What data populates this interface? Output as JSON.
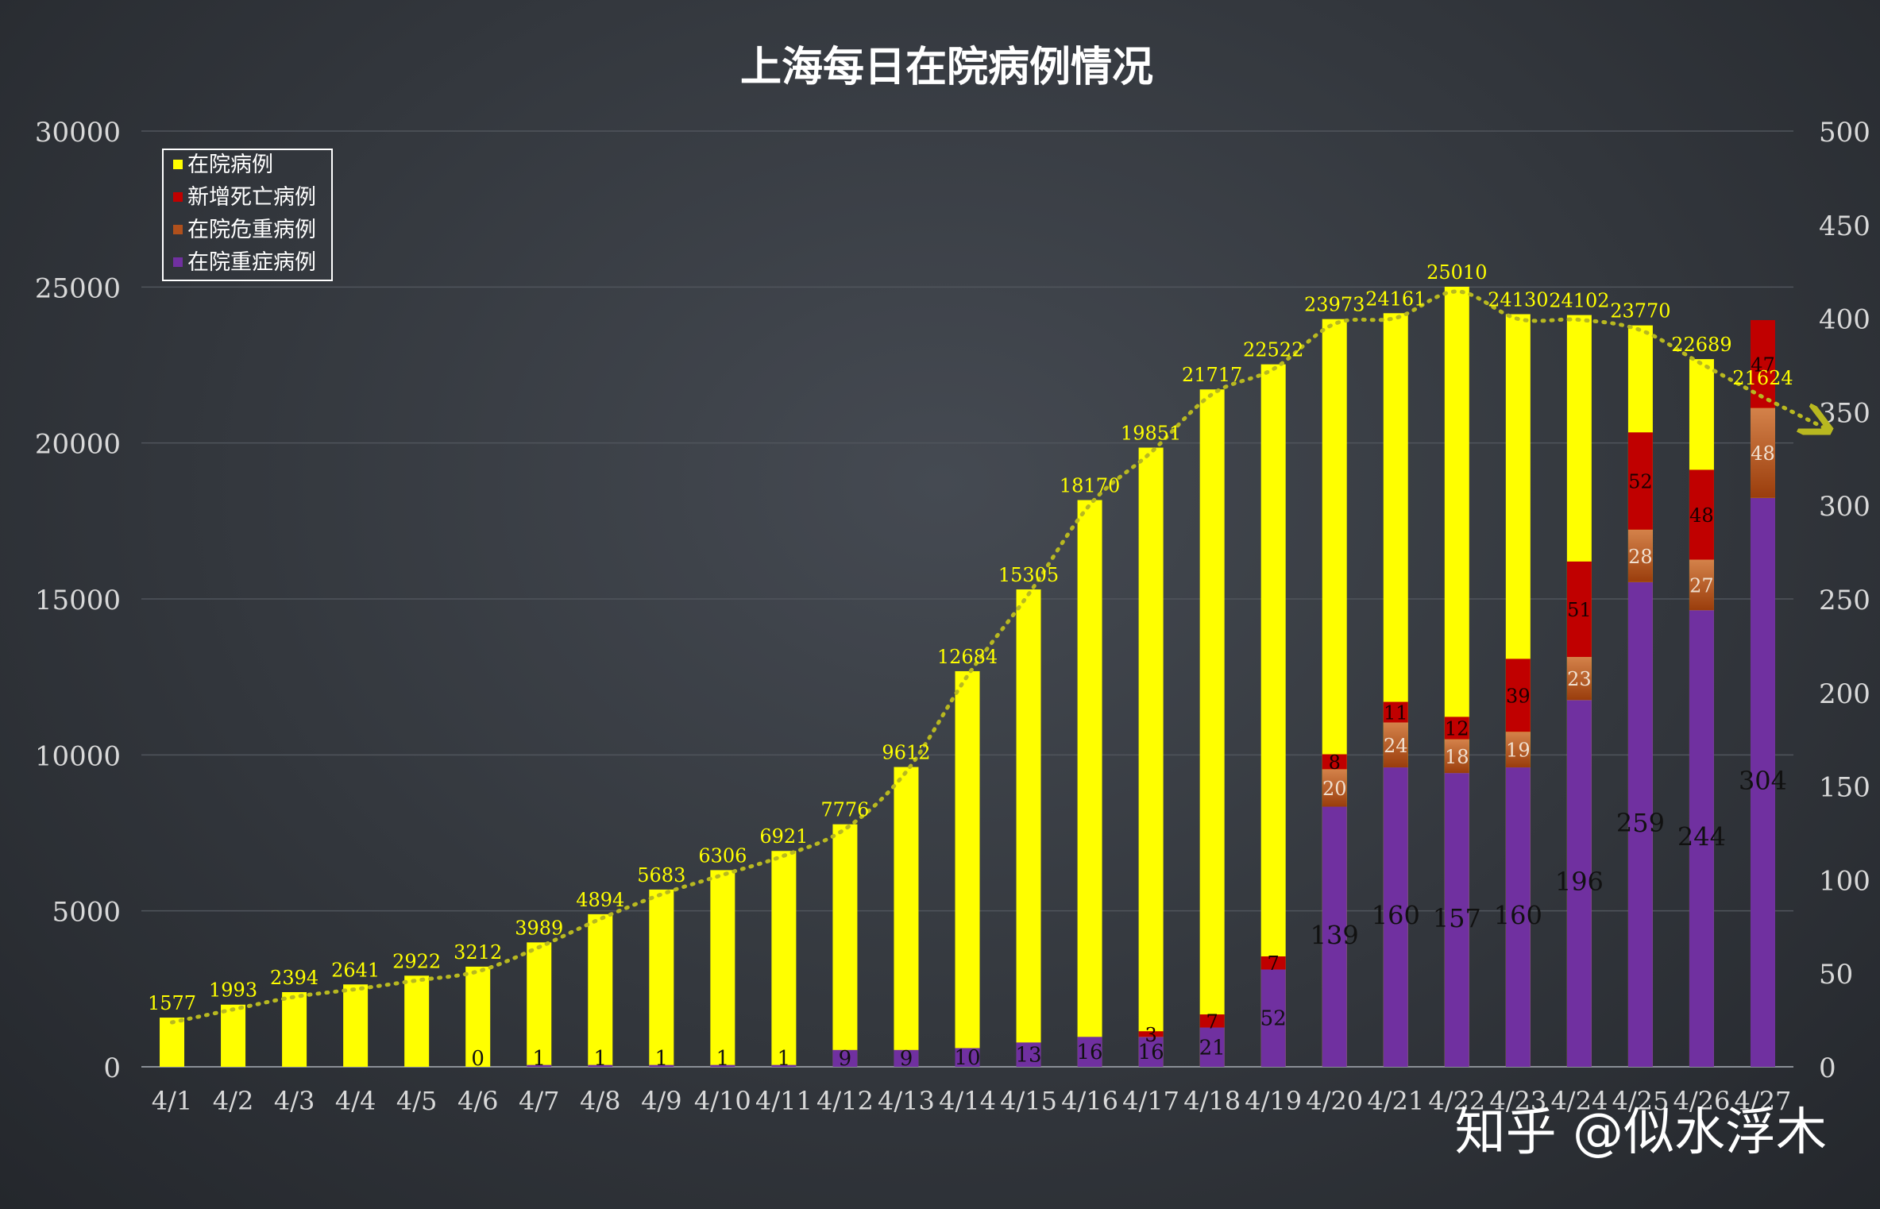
{
  "chart_data": {
    "type": "bar",
    "title": "上海每日在院病例情况",
    "categories": [
      "4/1",
      "4/2",
      "4/3",
      "4/4",
      "4/5",
      "4/6",
      "4/7",
      "4/8",
      "4/9",
      "4/10",
      "4/11",
      "4/12",
      "4/13",
      "4/14",
      "4/15",
      "4/16",
      "4/17",
      "4/18",
      "4/19",
      "4/20",
      "4/21",
      "4/22",
      "4/23",
      "4/24",
      "4/25",
      "4/26",
      "4/27"
    ],
    "left_axis": {
      "min": 0,
      "max": 30000,
      "ticks": [
        "0",
        "5000",
        "10000",
        "15000",
        "20000",
        "25000",
        "30000"
      ]
    },
    "right_axis": {
      "min": 0,
      "max": 500,
      "ticks": [
        "0",
        "50",
        "100",
        "150",
        "200",
        "250",
        "300",
        "350",
        "400",
        "450",
        "500"
      ]
    },
    "grid": true,
    "legend_position": "top-left",
    "series": [
      {
        "name": "在院病例",
        "axis": "left",
        "color": "#ffff00",
        "values": [
          1577,
          1993,
          2394,
          2641,
          2922,
          3212,
          3989,
          4894,
          5683,
          6306,
          6921,
          7776,
          9612,
          12684,
          15305,
          18170,
          19851,
          21717,
          22522,
          23973,
          24161,
          25010,
          24130,
          24102,
          23770,
          22689,
          21624
        ],
        "labels": [
          "1577",
          "1993",
          "2394",
          "2641",
          "2922",
          "3212",
          "3989",
          "4894",
          "5683",
          "6306",
          "6921",
          "7776",
          "9612",
          "12684",
          "15305",
          "18170",
          "19851",
          "21717",
          "22522",
          "23973",
          "24161",
          "25010",
          "24130",
          "24102",
          "23770",
          "22689",
          "21624"
        ]
      },
      {
        "name": "在院重症病例",
        "axis": "right",
        "color": "#7030a0",
        "values": [
          0,
          0,
          0,
          0,
          0,
          0,
          1,
          1,
          1,
          1,
          1,
          9,
          9,
          10,
          13,
          16,
          16,
          21,
          52,
          139,
          160,
          157,
          160,
          196,
          259,
          244,
          304
        ],
        "labels": [
          "",
          "",
          "",
          "",
          "",
          "0",
          "1",
          "1",
          "1",
          "1",
          "1",
          "9",
          "9",
          "10",
          "13",
          "16",
          "16",
          "21",
          "52",
          "139",
          "160",
          "157",
          "160",
          "196",
          "259",
          "244",
          "304"
        ]
      },
      {
        "name": "在院危重病例",
        "axis": "right",
        "color": "#b0501c",
        "values": [
          0,
          0,
          0,
          0,
          0,
          0,
          0,
          0,
          0,
          0,
          0,
          0,
          0,
          0,
          0,
          0,
          0,
          0,
          0,
          20,
          24,
          18,
          19,
          23,
          28,
          27,
          48
        ],
        "labels": [
          "",
          "",
          "",
          "",
          "",
          "",
          "",
          "",
          "",
          "",
          "",
          "",
          "",
          "",
          "",
          "",
          "",
          "",
          "",
          "20",
          "24",
          "18",
          "19",
          "23",
          "28",
          "27",
          "48"
        ]
      },
      {
        "name": "新增死亡病例",
        "axis": "right",
        "color": "#c00000",
        "values": [
          0,
          0,
          0,
          0,
          0,
          0,
          0,
          0,
          0,
          0,
          0,
          0,
          0,
          0,
          0,
          0,
          3,
          7,
          7,
          8,
          11,
          12,
          39,
          51,
          52,
          48,
          47
        ],
        "labels": [
          "",
          "",
          "",
          "",
          "",
          "",
          "",
          "",
          "",
          "",
          "",
          "",
          "",
          "",
          "",
          "",
          "3",
          "7",
          "7",
          "8",
          "11",
          "12",
          "39",
          "51",
          "52",
          "48",
          "47"
        ]
      }
    ],
    "trendline": {
      "series": "在院病例",
      "style": "dotted",
      "color": "#b8b820"
    }
  },
  "legend": {
    "items": [
      {
        "label": "在院病例",
        "color": "#ffff00"
      },
      {
        "label": "新增死亡病例",
        "color": "#c00000"
      },
      {
        "label": "在院危重病例",
        "color": "#b0501c"
      },
      {
        "label": "在院重症病例",
        "color": "#7030a0"
      }
    ]
  },
  "watermark": {
    "text": "知乎 @似水浮木"
  }
}
